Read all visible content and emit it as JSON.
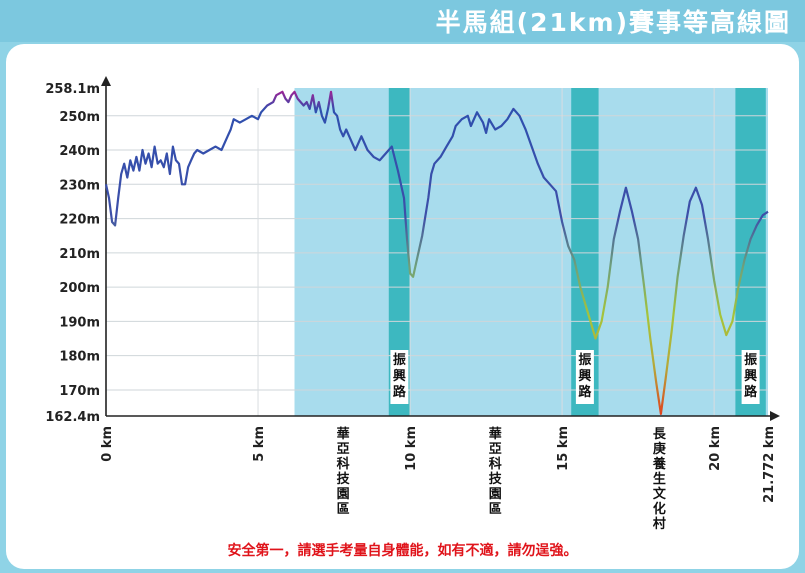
{
  "banner": {
    "title": "半馬組(21km)賽事等高線圖"
  },
  "footer": {
    "notice": "安全第一，請選手考量自身體能，如有不適，請勿逞強。"
  },
  "chart_data": {
    "type": "line",
    "title": "半馬組(21km)賽事等高線圖",
    "xlim": [
      0,
      21.772
    ],
    "ylim": [
      162.4,
      258.1
    ],
    "y_ticks": [
      {
        "value": 258.1,
        "label": "258.1m"
      },
      {
        "value": 250,
        "label": "250m"
      },
      {
        "value": 240,
        "label": "240m"
      },
      {
        "value": 230,
        "label": "230m"
      },
      {
        "value": 220,
        "label": "220m"
      },
      {
        "value": 210,
        "label": "210m"
      },
      {
        "value": 200,
        "label": "200m"
      },
      {
        "value": 190,
        "label": "190m"
      },
      {
        "value": 180,
        "label": "180m"
      },
      {
        "value": 170,
        "label": "170m"
      },
      {
        "value": 162.4,
        "label": "162.4m"
      }
    ],
    "x_ticks": [
      {
        "value": 0,
        "label": "0 km"
      },
      {
        "value": 5,
        "label": "5 km"
      },
      {
        "value": 10,
        "label": "10 km"
      },
      {
        "value": 15,
        "label": "15 km"
      },
      {
        "value": 20,
        "label": "20 km"
      },
      {
        "value": 21.772,
        "label": "21.772 km"
      }
    ],
    "zones": [
      {
        "from": 6.2,
        "to": 21.772,
        "color": "#a8dced",
        "label": ""
      },
      {
        "from": 9.3,
        "to": 10.0,
        "color": "#3db8c0",
        "label": "振興路"
      },
      {
        "from": 15.3,
        "to": 16.2,
        "color": "#3db8c0",
        "label": "振興路"
      },
      {
        "from": 20.7,
        "to": 21.7,
        "color": "#3db8c0",
        "label": "振興路"
      }
    ],
    "x_labels": [
      {
        "x": 7.8,
        "label": "華亞科技園區"
      },
      {
        "x": 12.8,
        "label": "華亞科技園區"
      },
      {
        "x": 18.2,
        "label": "長庚養生文化村"
      }
    ],
    "elevation_m": [
      [
        0.0,
        230
      ],
      [
        0.1,
        226
      ],
      [
        0.2,
        219
      ],
      [
        0.3,
        218
      ],
      [
        0.4,
        226
      ],
      [
        0.5,
        233
      ],
      [
        0.6,
        236
      ],
      [
        0.7,
        232
      ],
      [
        0.8,
        237
      ],
      [
        0.9,
        234
      ],
      [
        1.0,
        238
      ],
      [
        1.1,
        234
      ],
      [
        1.2,
        240
      ],
      [
        1.3,
        236
      ],
      [
        1.4,
        239
      ],
      [
        1.5,
        235
      ],
      [
        1.6,
        241
      ],
      [
        1.7,
        236
      ],
      [
        1.8,
        237
      ],
      [
        1.9,
        235
      ],
      [
        2.0,
        239
      ],
      [
        2.1,
        233
      ],
      [
        2.2,
        241
      ],
      [
        2.3,
        237
      ],
      [
        2.4,
        236
      ],
      [
        2.5,
        230
      ],
      [
        2.6,
        230
      ],
      [
        2.7,
        235
      ],
      [
        2.8,
        237
      ],
      [
        2.9,
        239
      ],
      [
        3.0,
        240
      ],
      [
        3.2,
        239
      ],
      [
        3.4,
        240
      ],
      [
        3.6,
        241
      ],
      [
        3.8,
        240
      ],
      [
        4.0,
        244
      ],
      [
        4.1,
        246
      ],
      [
        4.2,
        249
      ],
      [
        4.4,
        248
      ],
      [
        4.6,
        249
      ],
      [
        4.8,
        250
      ],
      [
        5.0,
        249
      ],
      [
        5.1,
        251
      ],
      [
        5.3,
        253
      ],
      [
        5.5,
        254
      ],
      [
        5.6,
        256
      ],
      [
        5.8,
        257
      ],
      [
        5.9,
        255
      ],
      [
        6.0,
        254
      ],
      [
        6.1,
        256
      ],
      [
        6.2,
        257
      ],
      [
        6.3,
        255
      ],
      [
        6.5,
        253
      ],
      [
        6.6,
        254
      ],
      [
        6.7,
        252
      ],
      [
        6.8,
        256
      ],
      [
        6.9,
        251
      ],
      [
        7.0,
        254
      ],
      [
        7.1,
        250
      ],
      [
        7.2,
        248
      ],
      [
        7.3,
        252
      ],
      [
        7.4,
        257
      ],
      [
        7.5,
        251
      ],
      [
        7.6,
        250
      ],
      [
        7.7,
        246
      ],
      [
        7.8,
        244
      ],
      [
        7.9,
        246
      ],
      [
        8.0,
        244
      ],
      [
        8.2,
        240
      ],
      [
        8.4,
        244
      ],
      [
        8.6,
        240
      ],
      [
        8.8,
        238
      ],
      [
        9.0,
        237
      ],
      [
        9.2,
        239
      ],
      [
        9.4,
        241
      ],
      [
        9.6,
        234
      ],
      [
        9.8,
        226
      ],
      [
        9.9,
        214
      ],
      [
        10.0,
        204
      ],
      [
        10.1,
        203
      ],
      [
        10.2,
        207
      ],
      [
        10.4,
        215
      ],
      [
        10.6,
        226
      ],
      [
        10.7,
        233
      ],
      [
        10.8,
        236
      ],
      [
        11.0,
        238
      ],
      [
        11.2,
        241
      ],
      [
        11.4,
        244
      ],
      [
        11.5,
        247
      ],
      [
        11.7,
        249
      ],
      [
        11.9,
        250
      ],
      [
        12.0,
        247
      ],
      [
        12.2,
        251
      ],
      [
        12.4,
        248
      ],
      [
        12.5,
        245
      ],
      [
        12.6,
        249
      ],
      [
        12.8,
        246
      ],
      [
        13.0,
        247
      ],
      [
        13.2,
        249
      ],
      [
        13.4,
        252
      ],
      [
        13.6,
        250
      ],
      [
        13.8,
        246
      ],
      [
        14.0,
        241
      ],
      [
        14.2,
        236
      ],
      [
        14.4,
        232
      ],
      [
        14.6,
        230
      ],
      [
        14.8,
        228
      ],
      [
        15.0,
        219
      ],
      [
        15.2,
        212
      ],
      [
        15.4,
        208
      ],
      [
        15.6,
        200
      ],
      [
        15.8,
        194
      ],
      [
        16.0,
        188
      ],
      [
        16.1,
        185
      ],
      [
        16.3,
        190
      ],
      [
        16.5,
        200
      ],
      [
        16.7,
        214
      ],
      [
        16.9,
        222
      ],
      [
        17.1,
        229
      ],
      [
        17.3,
        222
      ],
      [
        17.5,
        214
      ],
      [
        17.7,
        200
      ],
      [
        17.9,
        185
      ],
      [
        18.1,
        172
      ],
      [
        18.25,
        163
      ],
      [
        18.4,
        173
      ],
      [
        18.6,
        187
      ],
      [
        18.8,
        203
      ],
      [
        19.0,
        215
      ],
      [
        19.2,
        225
      ],
      [
        19.4,
        229
      ],
      [
        19.6,
        224
      ],
      [
        19.8,
        214
      ],
      [
        20.0,
        202
      ],
      [
        20.2,
        192
      ],
      [
        20.4,
        186
      ],
      [
        20.6,
        190
      ],
      [
        20.8,
        200
      ],
      [
        21.0,
        208
      ],
      [
        21.2,
        214
      ],
      [
        21.4,
        218
      ],
      [
        21.6,
        221
      ],
      [
        21.772,
        222
      ]
    ]
  }
}
